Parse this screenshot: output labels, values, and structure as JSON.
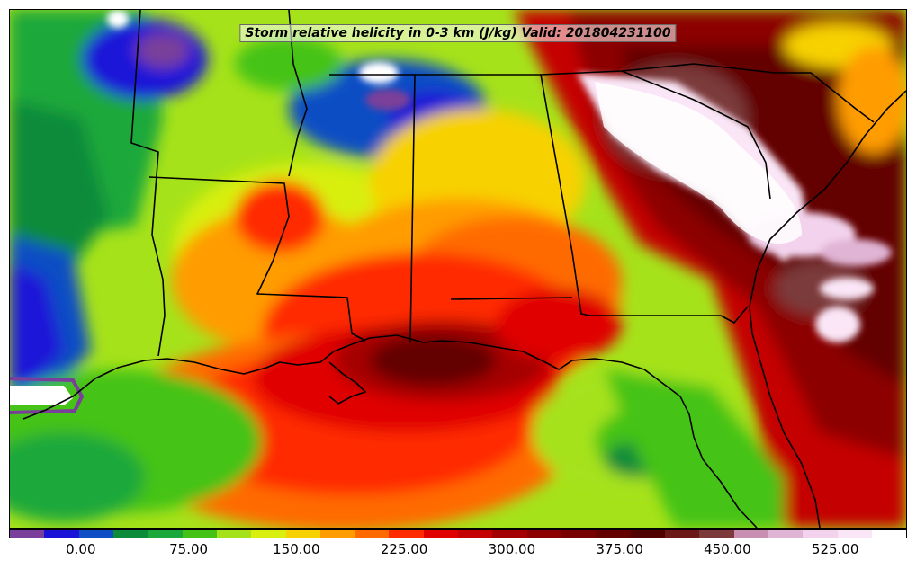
{
  "title": "Storm relative helicity in 0-3 km (J/kg) Valid: 201804231100",
  "colorbar": {
    "colors": [
      "#7a3f9a",
      "#1b12d8",
      "#0f4ec4",
      "#0c8b3a",
      "#1aa83a",
      "#44c316",
      "#a6e21a",
      "#d8ef10",
      "#f7d100",
      "#ff9c00",
      "#ff6a00",
      "#ff2a00",
      "#e00000",
      "#c40000",
      "#a50000",
      "#8c0000",
      "#780000",
      "#640000",
      "#500000",
      "#6a1818",
      "#7c3a3a",
      "#c98fb2",
      "#e0b4d4",
      "#f2d2ec",
      "#fae6f7",
      "#ffffff"
    ],
    "ticks": [
      "0.00",
      "75.00",
      "150.00",
      "225.00",
      "300.00",
      "375.00",
      "450.00",
      "525.00"
    ],
    "tick_values": [
      0,
      75,
      150,
      225,
      300,
      375,
      450,
      525
    ],
    "range": [
      -50,
      575
    ]
  }
}
